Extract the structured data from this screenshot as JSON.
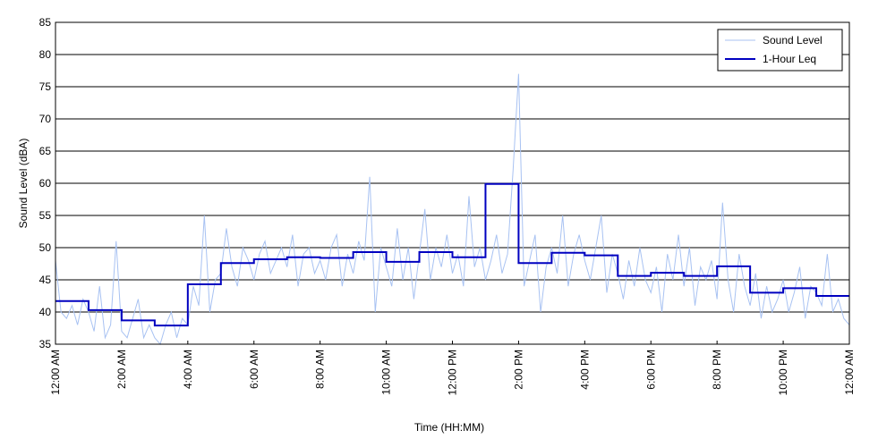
{
  "chart_data": {
    "type": "line",
    "xlabel": "Time (HH:MM)",
    "ylabel": "Sound Level (dBA)",
    "xlim": [
      0,
      1440
    ],
    "ylim": [
      35,
      85
    ],
    "xticks": [
      {
        "value": 0,
        "label": "12:00 AM"
      },
      {
        "value": 120,
        "label": "2:00 AM"
      },
      {
        "value": 240,
        "label": "4:00 AM"
      },
      {
        "value": 360,
        "label": "6:00 AM"
      },
      {
        "value": 480,
        "label": "8:00 AM"
      },
      {
        "value": 600,
        "label": "10:00 AM"
      },
      {
        "value": 720,
        "label": "12:00 PM"
      },
      {
        "value": 840,
        "label": "2:00 PM"
      },
      {
        "value": 960,
        "label": "4:00 PM"
      },
      {
        "value": 1080,
        "label": "6:00 PM"
      },
      {
        "value": 1200,
        "label": "8:00 PM"
      },
      {
        "value": 1320,
        "label": "10:00 PM"
      },
      {
        "value": 1440,
        "label": "12:00 AM"
      }
    ],
    "yticks": [
      35,
      40,
      45,
      50,
      55,
      60,
      65,
      70,
      75,
      80,
      85
    ],
    "grid": true,
    "legend": "upper right",
    "series": [
      {
        "name": "Sound Level",
        "color": "#a8c2f2",
        "step": false,
        "x": [
          0,
          10,
          20,
          30,
          40,
          50,
          60,
          70,
          80,
          90,
          100,
          110,
          120,
          130,
          140,
          150,
          160,
          170,
          180,
          190,
          200,
          210,
          220,
          230,
          240,
          250,
          260,
          270,
          280,
          290,
          300,
          310,
          320,
          330,
          340,
          350,
          360,
          370,
          380,
          390,
          400,
          410,
          420,
          430,
          440,
          450,
          460,
          470,
          480,
          490,
          500,
          510,
          520,
          530,
          540,
          550,
          560,
          570,
          580,
          590,
          600,
          610,
          620,
          630,
          640,
          650,
          660,
          670,
          680,
          690,
          700,
          710,
          720,
          730,
          740,
          750,
          760,
          770,
          780,
          790,
          800,
          810,
          820,
          830,
          840,
          850,
          860,
          870,
          880,
          890,
          900,
          910,
          920,
          930,
          940,
          950,
          960,
          970,
          980,
          990,
          1000,
          1010,
          1020,
          1030,
          1040,
          1050,
          1060,
          1070,
          1080,
          1090,
          1100,
          1110,
          1120,
          1130,
          1140,
          1150,
          1160,
          1170,
          1180,
          1190,
          1200,
          1210,
          1220,
          1230,
          1240,
          1250,
          1260,
          1270,
          1280,
          1290,
          1300,
          1310,
          1320,
          1330,
          1340,
          1350,
          1360,
          1370,
          1380,
          1390,
          1400,
          1410,
          1420,
          1430,
          1440
        ],
        "values": [
          48,
          40,
          39,
          41,
          38,
          42,
          40,
          37,
          44,
          36,
          38,
          51,
          37,
          36,
          39,
          42,
          36,
          38,
          36,
          35,
          38,
          40,
          36,
          39,
          38,
          44,
          41,
          55,
          40,
          45,
          46,
          53,
          47,
          44,
          50,
          48,
          45,
          49,
          51,
          46,
          48,
          50,
          47,
          52,
          44,
          49,
          50,
          46,
          48,
          45,
          50,
          52,
          44,
          49,
          46,
          51,
          48,
          61,
          40,
          50,
          47,
          44,
          53,
          45,
          50,
          42,
          49,
          56,
          45,
          50,
          47,
          52,
          46,
          49,
          44,
          58,
          47,
          50,
          45,
          48,
          52,
          46,
          49,
          62,
          77,
          44,
          48,
          52,
          40,
          47,
          50,
          46,
          55,
          44,
          49,
          52,
          48,
          45,
          50,
          55,
          43,
          49,
          46,
          42,
          48,
          44,
          50,
          45,
          43,
          47,
          40,
          49,
          45,
          52,
          44,
          50,
          41,
          47,
          45,
          48,
          42,
          57,
          45,
          40,
          49,
          44,
          41,
          46,
          39,
          44,
          40,
          42,
          45,
          40,
          43,
          47,
          39,
          44,
          43,
          41,
          49,
          40,
          42,
          39,
          38
        ]
      },
      {
        "name": "1-Hour Leq",
        "color": "#0000c0",
        "step": true,
        "x": [
          0,
          60,
          120,
          180,
          240,
          300,
          360,
          420,
          480,
          540,
          600,
          660,
          720,
          780,
          840,
          900,
          960,
          1020,
          1080,
          1140,
          1200,
          1260,
          1320,
          1380
        ],
        "values": [
          41.7,
          40.3,
          38.7,
          37.9,
          44.3,
          47.6,
          48.2,
          48.5,
          48.4,
          49.3,
          47.8,
          49.3,
          48.5,
          59.9,
          47.6,
          49.2,
          48.8,
          45.6,
          46.1,
          45.6,
          47.1,
          43.0,
          43.7,
          42.5
        ]
      }
    ]
  }
}
